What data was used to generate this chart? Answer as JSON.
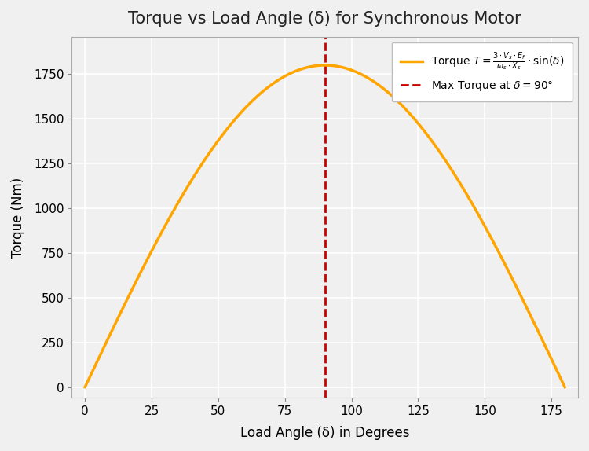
{
  "title": "Torque vs Load Angle (δ) for Synchronous Motor",
  "xlabel": "Load Angle (δ) in Degrees",
  "ylabel": "Torque (Nm)",
  "delta_min": 0,
  "delta_max": 180,
  "T_peak": 1800,
  "torque_color": "#FFA500",
  "vline_color": "#CC0000",
  "vline_x": 90,
  "background_color": "#f0f0f0",
  "plot_bg_color": "#f0f0f0",
  "grid_color": "#ffffff",
  "title_fontsize": 15,
  "label_fontsize": 12,
  "tick_fontsize": 11,
  "legend_fontsize": 10,
  "xlim": [
    -5,
    185
  ],
  "ylim": [
    -60,
    1960
  ],
  "xticks": [
    0,
    25,
    50,
    75,
    100,
    125,
    150,
    175
  ],
  "yticks": [
    0,
    250,
    500,
    750,
    1000,
    1250,
    1500,
    1750
  ],
  "figwidth": 7.5,
  "figheight": 5.74,
  "dpi": 100
}
